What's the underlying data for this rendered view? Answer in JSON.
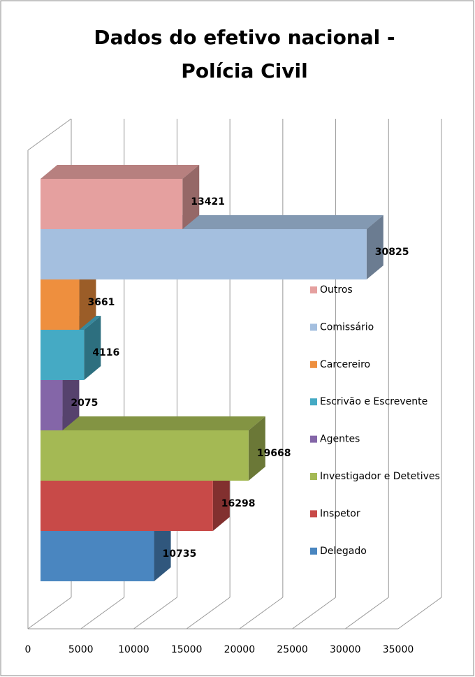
{
  "chart_data": {
    "type": "bar3d",
    "title": [
      "Dados do efetivo nacional -",
      "Polícia Civil"
    ],
    "categories": [
      "Delegado",
      "Inspetor",
      "Investigador e Detetives",
      "Agentes",
      "Escrivão e Escrevente",
      "Carcereiro",
      "Comissário",
      "Outros"
    ],
    "values": [
      10735,
      16298,
      19668,
      2075,
      4116,
      3661,
      30825,
      13421
    ],
    "colors": [
      "#4a86c0",
      "#c84a48",
      "#a4b954",
      "#8466a8",
      "#45aac4",
      "#ee8f3e",
      "#a4bfdf",
      "#e5a09f"
    ],
    "xlim": [
      0,
      35000
    ],
    "xticks": [
      0,
      5000,
      10000,
      15000,
      20000,
      25000,
      30000,
      35000
    ],
    "grid": true,
    "legend": "right"
  }
}
